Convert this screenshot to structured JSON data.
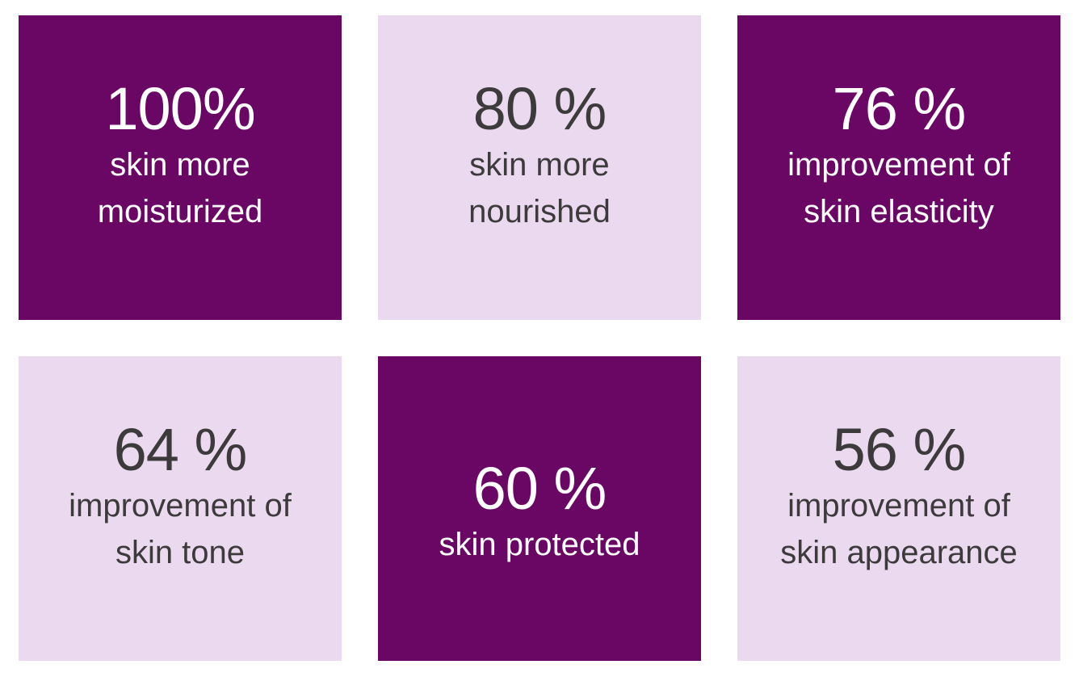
{
  "colors": {
    "dark_tile": "#6a0765",
    "light_tile": "#ead9ef",
    "dark_text": "#ffffff",
    "light_text": "#3d3a3c"
  },
  "stats": [
    {
      "value": "100%",
      "label": "skin more\nmoisturized"
    },
    {
      "value": "80 %",
      "label": "skin more\nnourished"
    },
    {
      "value": "76 %",
      "label": "improvement of\nskin elasticity"
    },
    {
      "value": "64 %",
      "label": "improvement of\nskin tone"
    },
    {
      "value": "60 %",
      "label": "skin protected"
    },
    {
      "value": "56 %",
      "label": "improvement of\nskin appearance"
    }
  ]
}
